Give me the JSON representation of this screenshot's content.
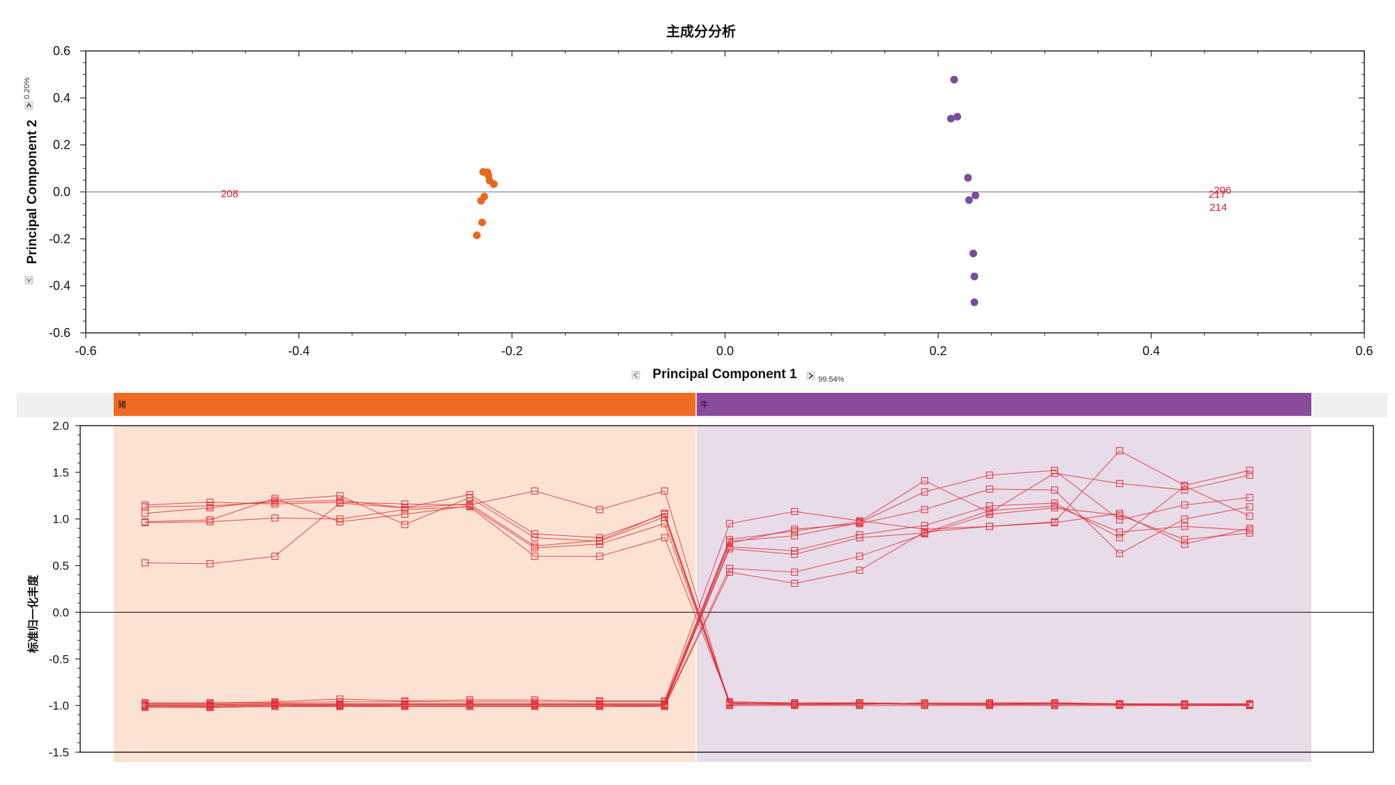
{
  "chart_data": [
    {
      "type": "scatter",
      "title": "主成分分析",
      "xlabel": "Principal Component 1",
      "ylabel": "Principal Component 2",
      "x_variance": "99.54%",
      "y_variance": "0.20%",
      "xlim": [
        -0.6,
        0.6
      ],
      "ylim": [
        -0.6,
        0.6
      ],
      "x_ticks": [
        "-0.6",
        "-0.4",
        "-0.2",
        "0.0",
        "0.2",
        "0.4",
        "0.6"
      ],
      "y_ticks": [
        "0.6",
        "0.4",
        "0.2",
        "0.0",
        "-0.2",
        "-0.4",
        "-0.6"
      ],
      "colors": {
        "group1": "#e8691e",
        "group2": "#7d4a9c",
        "labels": "#d81e28",
        "zero_line": "#888888"
      },
      "series": [
        {
          "color": "#e8691e",
          "points": [
            [
              -0.227,
              0.085
            ],
            [
              -0.223,
              0.083
            ],
            [
              -0.222,
              0.07
            ],
            [
              -0.221,
              0.048
            ],
            [
              -0.217,
              0.033
            ],
            [
              -0.226,
              -0.02
            ],
            [
              -0.229,
              -0.038
            ],
            [
              -0.228,
              -0.13
            ],
            [
              -0.233,
              -0.185
            ]
          ]
        },
        {
          "color": "#7d4a9c",
          "points": [
            [
              0.215,
              0.478
            ],
            [
              0.212,
              0.312
            ],
            [
              0.218,
              0.32
            ],
            [
              0.228,
              0.06
            ],
            [
              0.235,
              -0.015
            ],
            [
              0.229,
              -0.035
            ],
            [
              0.233,
              -0.262
            ],
            [
              0.234,
              -0.36
            ],
            [
              0.234,
              -0.47
            ]
          ]
        }
      ],
      "point_labels": [
        {
          "text": "208",
          "x": -0.465,
          "y": -0.005
        },
        {
          "text": "206",
          "x": 0.467,
          "y": 0.01
        },
        {
          "text": "217",
          "x": 0.462,
          "y": -0.008
        },
        {
          "text": "214",
          "x": 0.463,
          "y": -0.062
        }
      ]
    },
    {
      "type": "line",
      "ylabel": "标准归一化丰度",
      "ylim": [
        -1.5,
        2.0
      ],
      "y_ticks": [
        "2.0",
        "1.5",
        "1.0",
        "0.5",
        "0.0",
        "-0.5",
        "-1.0",
        "-1.5"
      ],
      "groups": [
        {
          "name": "猪",
          "color": "#f06a22",
          "bg": "#fbe2d2"
        },
        {
          "name": "牛",
          "color": "#8a4b9d",
          "bg": "#e8dce9"
        }
      ],
      "line_color": "#dd2b34",
      "series": [
        {
          "values": [
            1.15,
            1.18,
            1.16,
            1.18,
            1.16,
            1.15,
            1.3,
            1.1,
            1.3,
            -1.0,
            -1.0,
            -1.0,
            -1.0,
            -1.0,
            -1.0,
            -1.0,
            -1.0,
            -1.0
          ]
        },
        {
          "values": [
            1.13,
            1.14,
            1.18,
            1.2,
            1.12,
            1.26,
            0.84,
            0.8,
            1.05,
            -0.98,
            -0.98,
            -0.97,
            -0.98,
            -0.98,
            -0.98,
            -0.98,
            -0.98,
            -0.98
          ]
        },
        {
          "values": [
            1.06,
            1.12,
            1.2,
            1.25,
            0.94,
            1.23,
            0.8,
            0.76,
            1.02,
            -0.99,
            -0.99,
            -0.98,
            -0.99,
            -0.99,
            -0.99,
            -0.99,
            -0.99,
            -0.99
          ]
        },
        {
          "values": [
            0.97,
            0.99,
            1.22,
            0.97,
            1.05,
            1.14,
            0.69,
            0.73,
            0.95,
            -0.97,
            -0.99,
            -0.99,
            -0.97,
            -0.97,
            -0.97,
            -0.99,
            -0.99,
            -0.99
          ]
        },
        {
          "values": [
            0.96,
            0.97,
            1.01,
            1.0,
            1.1,
            1.13,
            0.6,
            0.6,
            0.8,
            -0.96,
            -0.98,
            -0.98,
            -0.98,
            -0.98,
            -0.97,
            -0.98,
            -1.0,
            -0.99
          ]
        },
        {
          "values": [
            0.53,
            0.52,
            0.6,
            1.17,
            1.12,
            1.16,
            0.71,
            0.77,
            1.06,
            -0.96,
            -0.97,
            -0.97,
            -0.98,
            -0.99,
            -0.98,
            -0.99,
            -1.0,
            -1.0
          ]
        },
        {
          "values": [
            -0.97,
            -0.97,
            -0.96,
            -0.93,
            -0.95,
            -0.94,
            -0.94,
            -0.95,
            -0.95,
            0.95,
            1.08,
            0.98,
            0.89,
            0.92,
            0.97,
            1.73,
            1.36,
            1.52
          ]
        },
        {
          "values": [
            -0.98,
            -0.98,
            -0.97,
            -0.96,
            -0.96,
            -0.96,
            -0.96,
            -0.96,
            -0.96,
            0.78,
            0.87,
            0.97,
            1.41,
            1.07,
            1.49,
            1.38,
            1.31,
            1.47
          ]
        },
        {
          "values": [
            -0.99,
            -0.99,
            -0.98,
            -0.98,
            -0.98,
            -0.98,
            -0.98,
            -0.98,
            -0.98,
            0.76,
            0.82,
            0.96,
            1.29,
            1.47,
            1.52,
            0.99,
            1.15,
            1.23
          ]
        },
        {
          "values": [
            -1.0,
            -1.0,
            -0.99,
            -0.99,
            -0.99,
            -0.99,
            -0.99,
            -0.99,
            -0.99,
            0.74,
            0.89,
            0.95,
            1.1,
            1.32,
            1.31,
            0.63,
            1.0,
            1.13
          ]
        },
        {
          "values": [
            -1.0,
            -1.0,
            -0.99,
            -0.99,
            -0.99,
            -0.99,
            -0.99,
            -0.99,
            -0.99,
            0.7,
            0.66,
            0.83,
            0.93,
            1.14,
            1.17,
            0.8,
            1.35,
            1.03
          ]
        },
        {
          "values": [
            -1.0,
            -1.01,
            -1.0,
            -1.0,
            -1.0,
            -1.0,
            -1.0,
            -1.0,
            -1.0,
            0.68,
            0.62,
            0.8,
            0.85,
            1.09,
            1.14,
            0.86,
            0.92,
            0.88
          ]
        },
        {
          "values": [
            -1.01,
            -1.02,
            -1.01,
            -1.0,
            -1.01,
            -1.01,
            -1.01,
            -1.01,
            -1.0,
            0.47,
            0.43,
            0.6,
            0.84,
            1.05,
            1.12,
            1.04,
            0.78,
            0.85
          ]
        },
        {
          "values": [
            -1.02,
            -1.02,
            -1.01,
            -1.01,
            -1.01,
            -1.01,
            -1.01,
            -1.01,
            -1.01,
            0.43,
            0.31,
            0.45,
            0.86,
            0.92,
            0.96,
            1.06,
            0.73,
            0.9
          ]
        }
      ]
    }
  ]
}
